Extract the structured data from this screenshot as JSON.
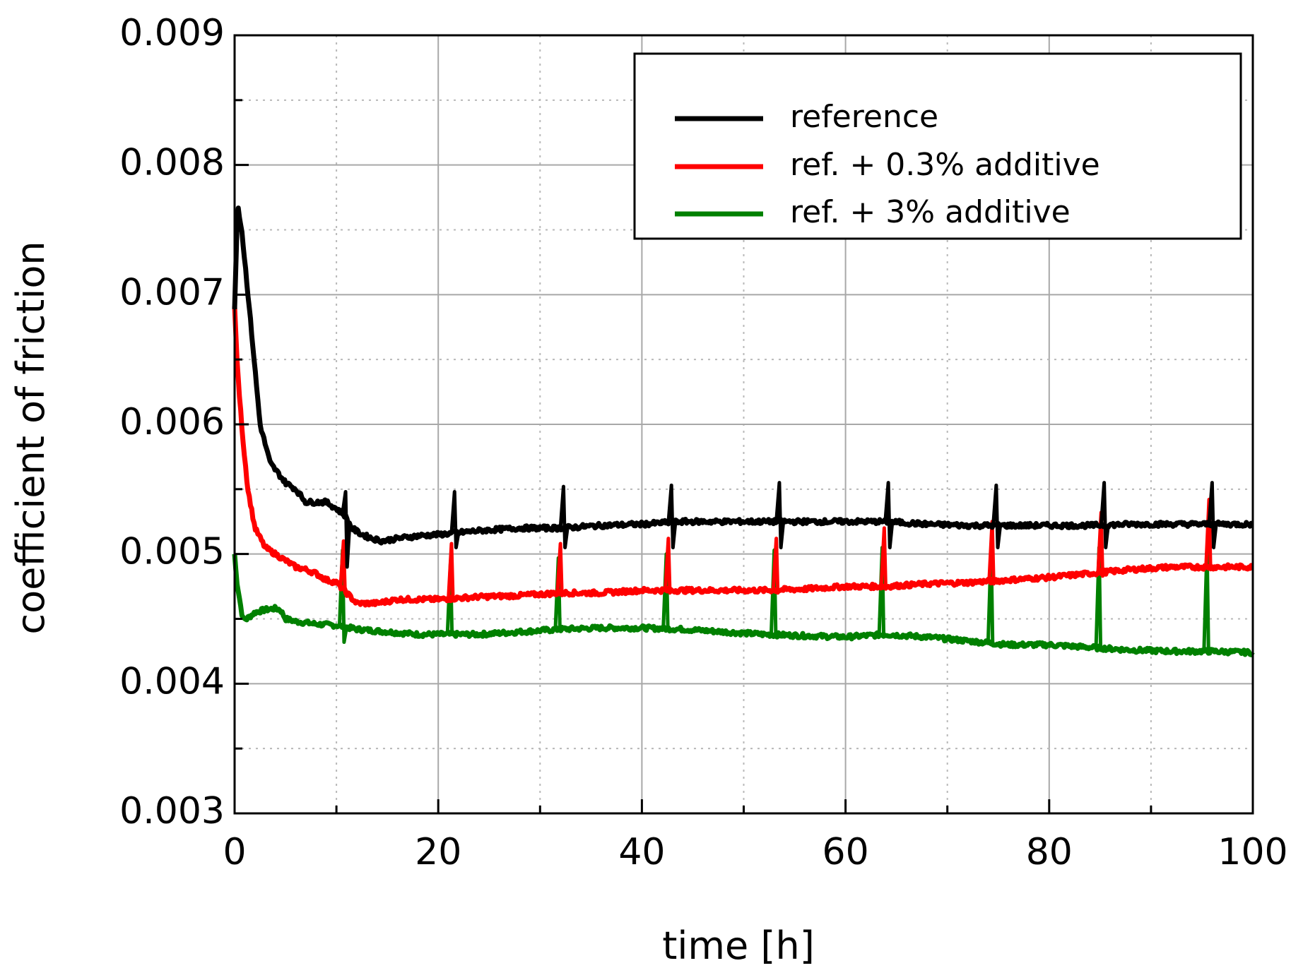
{
  "chart_data": {
    "type": "line",
    "title": "",
    "xlabel": "time [h]",
    "ylabel": "coefficient of friction",
    "xlim": [
      0,
      100
    ],
    "ylim": [
      0.003,
      0.009
    ],
    "xticks": [
      0,
      20,
      40,
      60,
      80,
      100
    ],
    "xtick_labels": [
      "0",
      "20",
      "40",
      "60",
      "80",
      "100"
    ],
    "yticks": [
      0.003,
      0.004,
      0.005,
      0.006,
      0.007,
      0.008,
      0.009
    ],
    "ytick_labels": [
      "0.003",
      "0.004",
      "0.005",
      "0.006",
      "0.007",
      "0.008",
      "0.009"
    ],
    "grid": true,
    "legend_position": "top-right",
    "series": [
      {
        "name": "reference",
        "color": "#000000",
        "x": [
          0,
          0.3,
          0.7,
          1.2,
          1.8,
          2.5,
          3.5,
          5,
          6,
          7,
          8,
          9,
          10,
          10.8,
          11.5,
          12.5,
          13.5,
          14.5,
          16,
          18,
          20,
          24,
          28,
          32,
          36,
          40,
          44,
          48,
          52,
          56,
          60,
          64,
          68,
          72,
          76,
          80,
          84,
          88,
          92,
          96,
          100
        ],
        "y": [
          0.0069,
          0.0077,
          0.0075,
          0.0071,
          0.0066,
          0.006,
          0.0057,
          0.00555,
          0.0055,
          0.0054,
          0.0054,
          0.0054,
          0.00535,
          0.0053,
          0.0052,
          0.00515,
          0.00512,
          0.0051,
          0.00512,
          0.00514,
          0.00515,
          0.00518,
          0.0052,
          0.0052,
          0.00522,
          0.00523,
          0.00525,
          0.00525,
          0.00525,
          0.00525,
          0.00525,
          0.00525,
          0.00523,
          0.00522,
          0.00522,
          0.00522,
          0.00522,
          0.00523,
          0.00523,
          0.00523,
          0.00523
        ],
        "spikes": [
          {
            "x": 10.9,
            "high": 0.00548,
            "low": 0.0049
          },
          {
            "x": 21.6,
            "high": 0.00548,
            "low": 0.00505
          },
          {
            "x": 32.3,
            "high": 0.00552,
            "low": 0.00505
          },
          {
            "x": 42.9,
            "high": 0.00553,
            "low": 0.00505
          },
          {
            "x": 53.5,
            "high": 0.00555,
            "low": 0.00505
          },
          {
            "x": 64.2,
            "high": 0.00555,
            "low": 0.00505
          },
          {
            "x": 74.8,
            "high": 0.00553,
            "low": 0.00505
          },
          {
            "x": 85.4,
            "high": 0.00555,
            "low": 0.00505
          },
          {
            "x": 96.0,
            "high": 0.00555,
            "low": 0.00505
          }
        ]
      },
      {
        "name": "ref. + 0.3% additive",
        "color": "#ff0000",
        "x": [
          0,
          0.3,
          0.8,
          1.3,
          2,
          3,
          4,
          5,
          6,
          7,
          8,
          9,
          10,
          11,
          12,
          13,
          14,
          16,
          18,
          20,
          24,
          28,
          32,
          36,
          40,
          44,
          48,
          52,
          56,
          60,
          64,
          68,
          72,
          76,
          80,
          84,
          88,
          92,
          96,
          100
        ],
        "y": [
          0.0069,
          0.0064,
          0.0059,
          0.0055,
          0.0052,
          0.00505,
          0.005,
          0.00495,
          0.0049,
          0.00488,
          0.00485,
          0.0048,
          0.00478,
          0.0047,
          0.00462,
          0.00462,
          0.00462,
          0.00465,
          0.00465,
          0.00465,
          0.00467,
          0.00468,
          0.0047,
          0.0047,
          0.00472,
          0.00472,
          0.00472,
          0.00472,
          0.00473,
          0.00475,
          0.00475,
          0.00477,
          0.00478,
          0.0048,
          0.00482,
          0.00485,
          0.00488,
          0.0049,
          0.0049,
          0.0049
        ],
        "spikes": [
          {
            "x": 10.7,
            "high": 0.0051,
            "low": 0.0047
          },
          {
            "x": 21.3,
            "high": 0.00508,
            "low": 0.00465
          },
          {
            "x": 32.0,
            "high": 0.00508,
            "low": 0.00468
          },
          {
            "x": 42.6,
            "high": 0.00512,
            "low": 0.0047
          },
          {
            "x": 53.2,
            "high": 0.00512,
            "low": 0.0047
          },
          {
            "x": 63.8,
            "high": 0.0052,
            "low": 0.00473
          },
          {
            "x": 74.4,
            "high": 0.00525,
            "low": 0.00477
          },
          {
            "x": 85.1,
            "high": 0.00532,
            "low": 0.00483
          },
          {
            "x": 95.7,
            "high": 0.00542,
            "low": 0.00488
          }
        ]
      },
      {
        "name": "ref. + 3% additive",
        "color": "#008000",
        "x": [
          0,
          0.2,
          0.5,
          0.8,
          1.2,
          2,
          3,
          4,
          4.5,
          5,
          6,
          7,
          8,
          10,
          12,
          15,
          18,
          20,
          24,
          28,
          32,
          36,
          40,
          44,
          48,
          52,
          56,
          60,
          64,
          68,
          72,
          76,
          80,
          84,
          88,
          92,
          96,
          100
        ],
        "y": [
          0.005,
          0.0048,
          0.00465,
          0.0045,
          0.0045,
          0.00455,
          0.00457,
          0.00458,
          0.00457,
          0.0045,
          0.00448,
          0.00447,
          0.00446,
          0.00445,
          0.00442,
          0.0044,
          0.00438,
          0.00438,
          0.00438,
          0.0044,
          0.00442,
          0.00443,
          0.00443,
          0.00442,
          0.0044,
          0.00438,
          0.00437,
          0.00436,
          0.00438,
          0.00436,
          0.00433,
          0.0043,
          0.0043,
          0.00428,
          0.00426,
          0.00425,
          0.00425,
          0.00424
        ],
        "spikes": [
          {
            "x": 10.6,
            "high": 0.00503,
            "low": 0.00432
          },
          {
            "x": 21.2,
            "high": 0.00493,
            "low": 0.00438
          },
          {
            "x": 31.8,
            "high": 0.00497,
            "low": 0.00442
          },
          {
            "x": 42.4,
            "high": 0.005,
            "low": 0.00443
          },
          {
            "x": 53.0,
            "high": 0.00503,
            "low": 0.00438
          },
          {
            "x": 63.6,
            "high": 0.00505,
            "low": 0.00436
          },
          {
            "x": 74.3,
            "high": 0.00505,
            "low": 0.0043
          },
          {
            "x": 84.9,
            "high": 0.00505,
            "low": 0.00428
          },
          {
            "x": 95.5,
            "high": 0.00505,
            "low": 0.00425
          }
        ]
      }
    ]
  }
}
